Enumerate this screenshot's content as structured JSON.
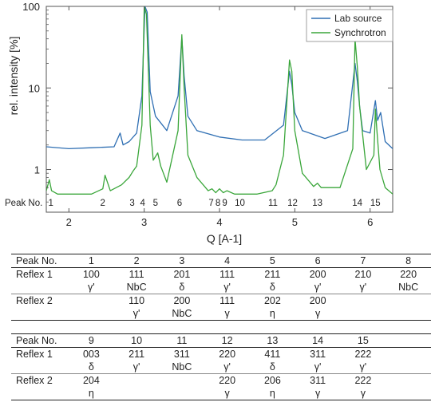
{
  "chart_data": {
    "type": "line",
    "xlabel": "Q [A-1]",
    "ylabel": "rel. intensity [%]",
    "xlim": [
      1.7,
      6.3
    ],
    "ylim_log": [
      0.3,
      100
    ],
    "scale_y": "log",
    "x_ticks": [
      2,
      3,
      4,
      5,
      6
    ],
    "y_ticks": [
      1,
      10,
      100
    ],
    "y_tick_labels": [
      "1",
      "10",
      "100"
    ],
    "legend_position": "top-right",
    "series": [
      {
        "name": "Lab source",
        "color": "#2f6fb3",
        "baseline": 1.9,
        "x": [
          1.7,
          2.0,
          2.3,
          2.6,
          2.68,
          2.72,
          2.8,
          2.9,
          2.97,
          3.01,
          3.04,
          3.08,
          3.15,
          3.3,
          3.45,
          3.5,
          3.53,
          3.58,
          3.7,
          4.0,
          4.3,
          4.6,
          4.85,
          4.93,
          4.96,
          5.0,
          5.1,
          5.4,
          5.7,
          5.8,
          5.83,
          5.86,
          5.9,
          6.0,
          6.07,
          6.1,
          6.14,
          6.2,
          6.3
        ],
        "y": [
          1.9,
          1.8,
          1.85,
          1.9,
          2.8,
          2.0,
          2.2,
          2.8,
          8.0,
          100,
          85,
          9.0,
          4.5,
          3.0,
          8.0,
          42,
          14,
          4.5,
          3.0,
          2.5,
          2.3,
          2.3,
          3.5,
          16,
          11,
          5.0,
          3.0,
          2.4,
          3.0,
          20,
          12,
          6.0,
          3.0,
          2.8,
          7.0,
          4.0,
          5.0,
          2.2,
          1.8
        ]
      },
      {
        "name": "Synchrotron",
        "color": "#3aa63a",
        "x": [
          1.7,
          1.74,
          1.77,
          1.85,
          2.0,
          2.3,
          2.45,
          2.48,
          2.55,
          2.7,
          2.8,
          2.85,
          2.9,
          2.97,
          3.0,
          3.03,
          3.08,
          3.12,
          3.18,
          3.22,
          3.3,
          3.45,
          3.5,
          3.53,
          3.58,
          3.7,
          3.85,
          3.9,
          3.95,
          4.0,
          4.05,
          4.1,
          4.2,
          4.5,
          4.7,
          4.75,
          4.85,
          4.93,
          4.96,
          5.0,
          5.1,
          5.25,
          5.3,
          5.35,
          5.6,
          5.77,
          5.8,
          5.83,
          5.86,
          5.95,
          6.05,
          6.07,
          6.09,
          6.13,
          6.2,
          6.3
        ],
        "y": [
          0.55,
          0.75,
          0.55,
          0.5,
          0.5,
          0.5,
          0.58,
          0.85,
          0.55,
          0.65,
          0.8,
          0.95,
          1.1,
          3.5,
          100,
          80,
          3.5,
          1.3,
          1.6,
          1.1,
          0.7,
          3.0,
          45,
          10,
          1.5,
          0.8,
          0.55,
          0.58,
          0.52,
          0.58,
          0.52,
          0.55,
          0.5,
          0.5,
          0.55,
          0.65,
          1.5,
          22,
          16,
          3.0,
          0.9,
          0.62,
          0.68,
          0.6,
          0.6,
          1.8,
          40,
          18,
          6.0,
          1.0,
          1.5,
          5.5,
          3.0,
          1.0,
          0.6,
          0.5
        ]
      }
    ],
    "peak_row_label": "Peak No.",
    "peak_labels": [
      {
        "label": "1",
        "q": 1.76
      },
      {
        "label": "2",
        "q": 2.45
      },
      {
        "label": "3",
        "q": 2.84
      },
      {
        "label": "4",
        "q": 2.98
      },
      {
        "label": "5",
        "q": 3.15
      },
      {
        "label": "6",
        "q": 3.47
      },
      {
        "label": "7",
        "q": 3.89
      },
      {
        "label": "8",
        "q": 3.98
      },
      {
        "label": "9",
        "q": 4.07
      },
      {
        "label": "10",
        "q": 4.27
      },
      {
        "label": "11",
        "q": 4.71
      },
      {
        "label": "12",
        "q": 4.97
      },
      {
        "label": "13",
        "q": 5.3
      },
      {
        "label": "14",
        "q": 5.83
      },
      {
        "label": "15",
        "q": 6.07
      }
    ]
  },
  "table1": {
    "header": [
      "Peak No.",
      "1",
      "2",
      "3",
      "4",
      "5",
      "6",
      "7",
      "8"
    ],
    "reflex1_label": "Reflex 1",
    "reflex1_hkl": [
      "100",
      "111",
      "201",
      "111",
      "211",
      "200",
      "210",
      "220"
    ],
    "reflex1_phase": [
      "γ'",
      "NbC",
      "δ",
      "γ'",
      "δ",
      "γ'",
      "γ'",
      "NbC"
    ],
    "reflex2_label": "Reflex 2",
    "reflex2_hkl": [
      "",
      "110",
      "200",
      "111",
      "202",
      "200",
      "",
      ""
    ],
    "reflex2_phase": [
      "",
      "γ'",
      "NbC",
      "γ",
      "η",
      "γ",
      "",
      ""
    ]
  },
  "table2": {
    "header": [
      "Peak No.",
      "9",
      "10",
      "11",
      "12",
      "13",
      "14",
      "15",
      ""
    ],
    "reflex1_label": "Reflex 1",
    "reflex1_hkl": [
      "003",
      "211",
      "311",
      "220",
      "411",
      "311",
      "222",
      ""
    ],
    "reflex1_phase": [
      "δ",
      "γ'",
      "NbC",
      "γ'",
      "δ",
      "γ'",
      "γ'",
      ""
    ],
    "reflex2_label": "Reflex 2",
    "reflex2_hkl": [
      "204",
      "",
      "",
      "220",
      "206",
      "311",
      "222",
      ""
    ],
    "reflex2_phase": [
      "η",
      "",
      "",
      "γ",
      "η",
      "γ",
      "γ",
      ""
    ]
  }
}
